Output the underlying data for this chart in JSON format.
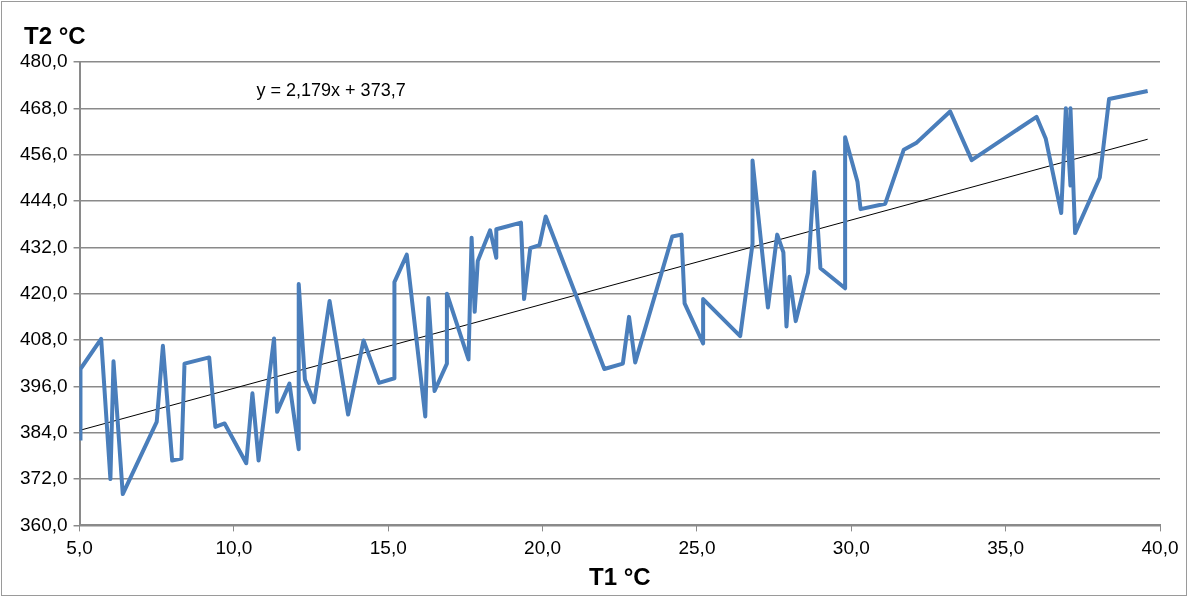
{
  "chart_data": {
    "type": "line",
    "xlabel": "T1 °C",
    "ylabel": "T2 °C",
    "annotations": [
      "y = 2,179x + 373,7"
    ],
    "xlim": [
      5,
      40
    ],
    "xticks": [
      {
        "value": 5,
        "label": "5,0"
      },
      {
        "value": 10,
        "label": "10,0"
      },
      {
        "value": 15,
        "label": "15,0"
      },
      {
        "value": 20,
        "label": "20,0"
      },
      {
        "value": 25,
        "label": "25,0"
      },
      {
        "value": 30,
        "label": "30,0"
      },
      {
        "value": 35,
        "label": "35,0"
      },
      {
        "value": 40,
        "label": "40,0"
      }
    ],
    "ylim": [
      360,
      480
    ],
    "yticks": [
      {
        "value": 360,
        "label": "360,0"
      },
      {
        "value": 372,
        "label": "372,0"
      },
      {
        "value": 384,
        "label": "384,0"
      },
      {
        "value": 396,
        "label": "396,0"
      },
      {
        "value": 408,
        "label": "408,0"
      },
      {
        "value": 420,
        "label": "420,0"
      },
      {
        "value": 432,
        "label": "432,0"
      },
      {
        "value": 444,
        "label": "444,0"
      },
      {
        "value": 456,
        "label": "456,0"
      },
      {
        "value": 468,
        "label": "468,0"
      },
      {
        "value": 480,
        "label": "480,0"
      }
    ],
    "grid": "y",
    "marker": "none",
    "line_style": "solid",
    "series": [
      {
        "color": "#4a7ebb",
        "x": [
          5.03,
          5.03,
          5.7,
          6.0,
          6.1,
          6.4,
          7.5,
          7.7,
          8.0,
          8.3,
          8.4,
          9.2,
          9.4,
          9.7,
          10.4,
          10.6,
          10.8,
          11.3,
          11.4,
          11.8,
          12.1,
          12.1,
          12.3,
          12.6,
          13.1,
          13.7,
          14.2,
          14.7,
          15.2,
          15.2,
          15.6,
          16.2,
          16.3,
          16.5,
          16.9,
          16.9,
          17.6,
          17.7,
          17.8,
          17.9,
          18.3,
          18.5,
          18.5,
          19.3,
          19.4,
          19.6,
          19.9,
          20.1,
          22.0,
          22.6,
          22.8,
          23.0,
          24.2,
          24.5,
          24.6,
          25.2,
          25.2,
          26.4,
          26.8,
          26.8,
          27.3,
          27.6,
          27.8,
          27.9,
          28.0,
          28.2,
          28.6,
          28.8,
          29.0,
          29.8,
          29.8,
          30.2,
          30.3,
          31.1,
          31.7,
          32.1,
          33.2,
          33.9,
          36.0,
          36.3,
          36.8,
          36.95,
          37.1,
          37.1,
          37.25,
          38.05,
          38.35,
          39.6
        ],
        "values": [
          382,
          400.5,
          408.3,
          372,
          402.5,
          368.1,
          386.8,
          406.5,
          376.8,
          377.3,
          401.9,
          403.5,
          385.5,
          386.4,
          376.1,
          394.2,
          376.8,
          408.4,
          389.4,
          396.7,
          379.7,
          422.5,
          397.8,
          391.9,
          418.1,
          388.7,
          407.9,
          396.9,
          398.1,
          423,
          430.1,
          388.2,
          418.9,
          394.8,
          401.9,
          420,
          403,
          434.5,
          415.3,
          428.5,
          436.4,
          429.3,
          436.7,
          438.4,
          418.6,
          431.8,
          432.6,
          440,
          400.5,
          401.9,
          414,
          402.2,
          434.8,
          435.3,
          417.5,
          407.1,
          418.6,
          409,
          432.9,
          454.5,
          416.4,
          435.3,
          430.7,
          411.5,
          424.4,
          412.9,
          425.5,
          451.5,
          426.6,
          421.4,
          460.5,
          449,
          441.9,
          443.3,
          457.3,
          459,
          467.2,
          454.6,
          465.8,
          460.1,
          440.9,
          468,
          448,
          468,
          435.7,
          450.1,
          470.4,
          472.5
        ]
      },
      {
        "color": "#000000",
        "x": [
          5,
          39.6
        ],
        "values": [
          384.6,
          460
        ]
      }
    ]
  }
}
